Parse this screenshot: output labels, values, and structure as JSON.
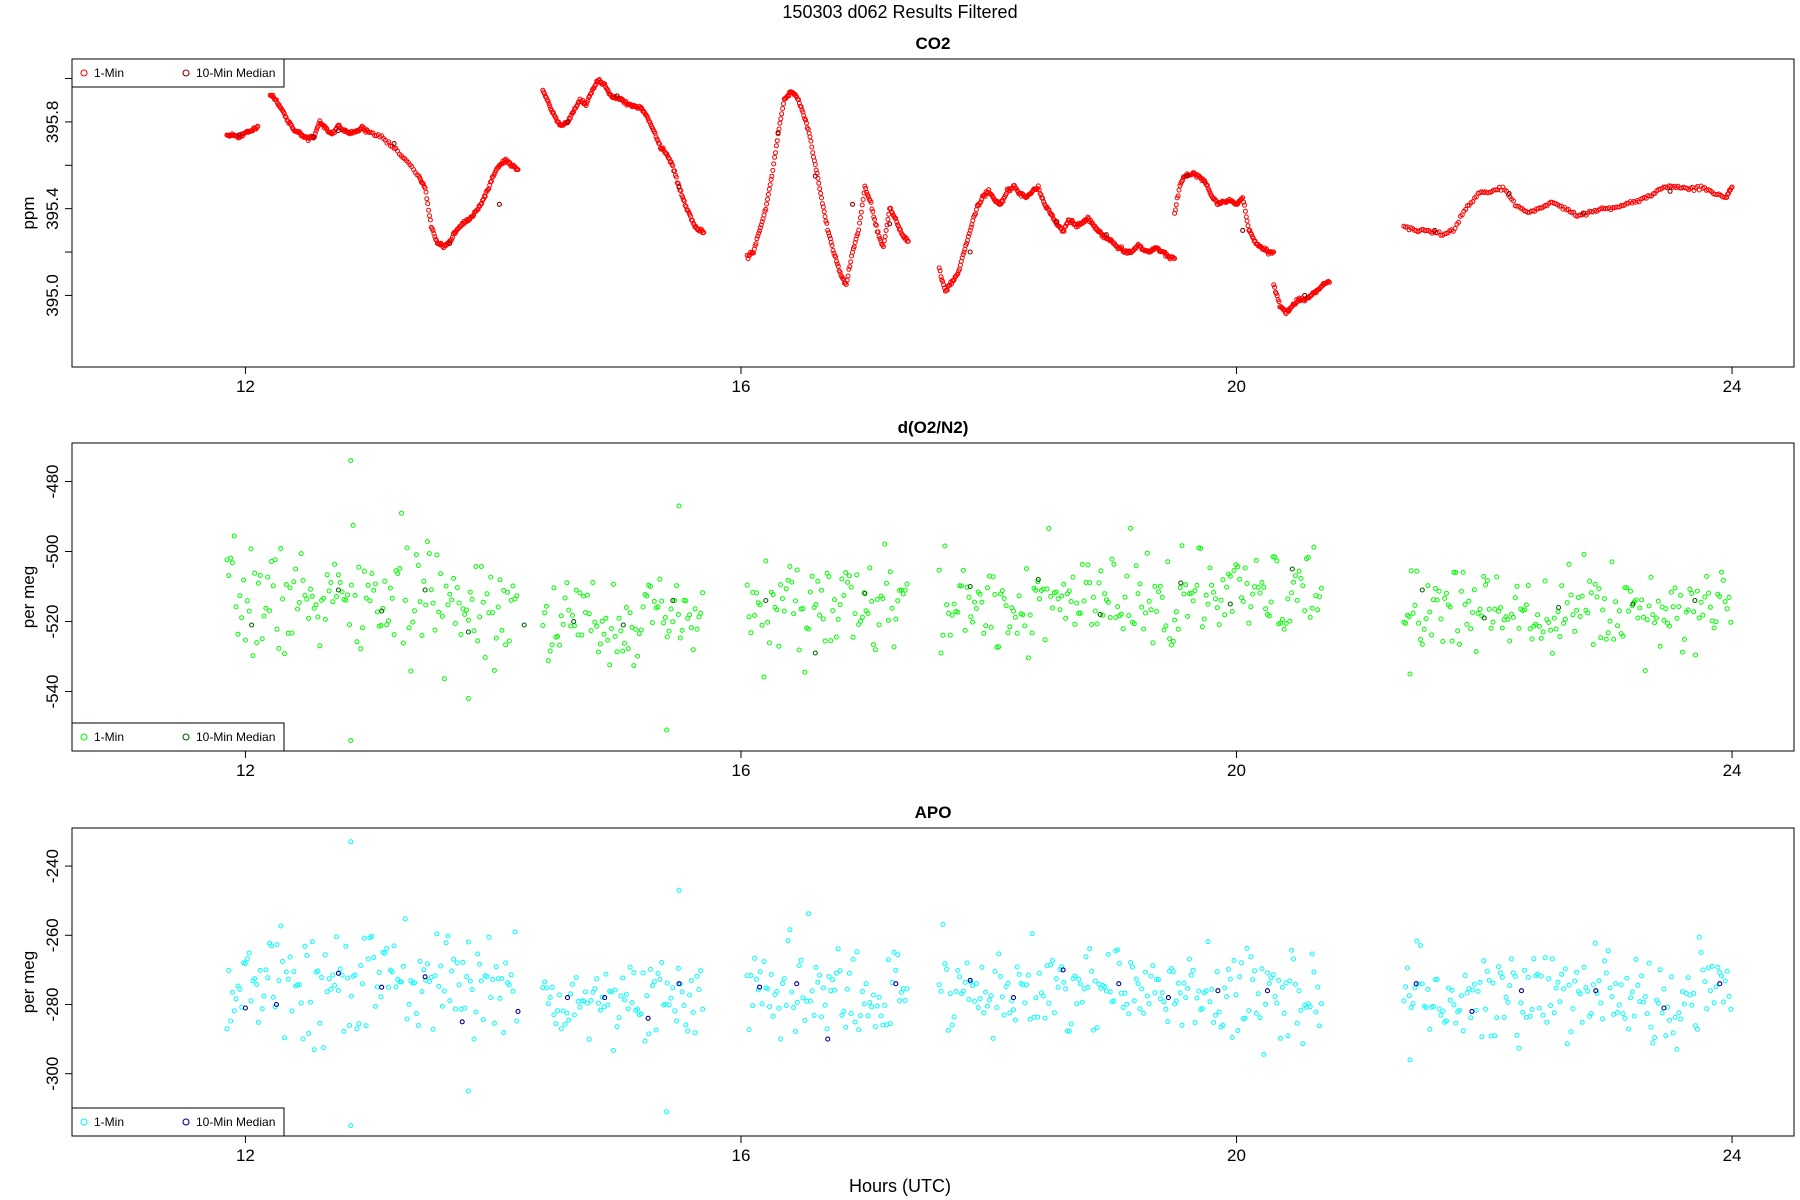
{
  "page": {
    "title": "150303   d062   Results Filtered",
    "xlabel": "Hours (UTC)"
  },
  "chart_data": [
    {
      "type": "scatter",
      "title": "CO2",
      "ylabel": "ppm",
      "xlim": [
        10.6,
        24.5
      ],
      "ylim": [
        394.67,
        396.09
      ],
      "xticks": [
        12,
        16,
        20,
        24
      ],
      "yticks": [
        395.0,
        395.2,
        395.4,
        395.6,
        395.8,
        396.0
      ],
      "yticklabels": [
        "395.0",
        "",
        "395.4",
        "",
        "395.8",
        ""
      ],
      "legend": {
        "position": "top-left",
        "entries": [
          "1-Min",
          "10-Min Median"
        ]
      },
      "colors": {
        "one_min": "#ff0000",
        "median": "#8b0000"
      },
      "series": [
        {
          "name": "1-Min",
          "gen": "smooth",
          "segments": [
            {
              "x": [
                11.85,
                11.9,
                11.95,
                12.0,
                12.05,
                12.1
              ],
              "y": [
                395.74,
                395.74,
                395.73,
                395.75,
                395.76,
                395.78
              ]
            },
            {
              "x": [
                12.2,
                12.25,
                12.3,
                12.35,
                12.4,
                12.45,
                12.5,
                12.55,
                12.6,
                12.65,
                12.7,
                12.75,
                12.8,
                12.85,
                12.9,
                12.95,
                13.0,
                13.1,
                13.2,
                13.3,
                13.4,
                13.45,
                13.5,
                13.55,
                13.6,
                13.65,
                13.7,
                13.75,
                13.8,
                13.85,
                13.9,
                13.95,
                14.0,
                14.05,
                14.1,
                14.15,
                14.2
              ],
              "y": [
                395.92,
                395.9,
                395.85,
                395.8,
                395.76,
                395.74,
                395.72,
                395.73,
                395.8,
                395.77,
                395.74,
                395.78,
                395.76,
                395.75,
                395.76,
                395.77,
                395.75,
                395.73,
                395.68,
                395.62,
                395.55,
                395.5,
                395.32,
                395.24,
                395.22,
                395.25,
                395.3,
                395.33,
                395.35,
                395.38,
                395.42,
                395.48,
                395.55,
                395.6,
                395.62,
                395.6,
                395.58
              ]
            },
            {
              "x": [
                14.4,
                14.45,
                14.5,
                14.55,
                14.6,
                14.65,
                14.7,
                14.75,
                14.8,
                14.85,
                14.9,
                14.95,
                15.0,
                15.05,
                15.1,
                15.15,
                15.2,
                15.25,
                15.3,
                15.35,
                15.4,
                15.45,
                15.5,
                15.55,
                15.6,
                15.65,
                15.7
              ],
              "y": [
                395.95,
                395.88,
                395.82,
                395.78,
                395.8,
                395.85,
                395.9,
                395.88,
                395.95,
                395.99,
                395.97,
                395.92,
                395.91,
                395.9,
                395.88,
                395.87,
                395.86,
                395.82,
                395.75,
                395.68,
                395.65,
                395.6,
                395.5,
                395.42,
                395.35,
                395.3,
                395.29
              ]
            },
            {
              "x": [
                16.05,
                16.1,
                16.15,
                16.2,
                16.25,
                16.3,
                16.35,
                16.4,
                16.45,
                16.5,
                16.55,
                16.6,
                16.65,
                16.7,
                16.75,
                16.8,
                16.85,
                16.9,
                16.95,
                17.0,
                17.05,
                17.1,
                17.15,
                17.2,
                17.25,
                17.3,
                17.35
              ],
              "y": [
                395.18,
                395.2,
                395.3,
                395.4,
                395.55,
                395.75,
                395.9,
                395.94,
                395.92,
                395.85,
                395.75,
                395.6,
                395.45,
                395.3,
                395.2,
                395.1,
                395.05,
                395.2,
                395.3,
                395.5,
                395.42,
                395.3,
                395.22,
                395.4,
                395.35,
                395.28,
                395.25
              ]
            },
            {
              "x": [
                17.6,
                17.65,
                17.7,
                17.75,
                17.8,
                17.85,
                17.9,
                17.95,
                18.0,
                18.05,
                18.1,
                18.15,
                18.2,
                18.25,
                18.3,
                18.35,
                18.4,
                18.45,
                18.5,
                18.55,
                18.6,
                18.65,
                18.7,
                18.75,
                18.8,
                18.85,
                18.9,
                18.95,
                19.0,
                19.05,
                19.1,
                19.15,
                19.2,
                19.25,
                19.3,
                19.35,
                19.4,
                19.45,
                19.5
              ],
              "y": [
                395.12,
                395.02,
                395.06,
                395.1,
                395.2,
                395.3,
                395.4,
                395.45,
                395.48,
                395.44,
                395.42,
                395.48,
                395.5,
                395.47,
                395.45,
                395.48,
                395.5,
                395.42,
                395.38,
                395.33,
                395.3,
                395.35,
                395.32,
                395.33,
                395.36,
                395.32,
                395.29,
                395.26,
                395.25,
                395.22,
                395.2,
                395.2,
                395.23,
                395.21,
                395.2,
                395.22,
                395.2,
                395.18,
                395.17
              ]
            },
            {
              "x": [
                19.5,
                19.55,
                19.6,
                19.65,
                19.7,
                19.75,
                19.8,
                19.85,
                19.9,
                19.95,
                20.0,
                20.05,
                20.1,
                20.15,
                20.2,
                20.25,
                20.3
              ],
              "y": [
                395.38,
                395.52,
                395.56,
                395.56,
                395.55,
                395.52,
                395.46,
                395.42,
                395.43,
                395.44,
                395.42,
                395.45,
                395.3,
                395.25,
                395.22,
                395.2,
                395.2
              ]
            },
            {
              "x": [
                20.3,
                20.35,
                20.4,
                20.45,
                20.5,
                20.55,
                20.6,
                20.65,
                20.7,
                20.75
              ],
              "y": [
                395.05,
                394.95,
                394.92,
                394.95,
                394.98,
                394.98,
                395.0,
                395.02,
                395.05,
                395.06
              ]
            },
            {
              "x": [
                21.35,
                21.45,
                21.55,
                21.65,
                21.75,
                21.85,
                21.95,
                22.05,
                22.15,
                22.25,
                22.35,
                22.45,
                22.55,
                22.65,
                22.75,
                22.85,
                22.95,
                23.05,
                23.15,
                23.25,
                23.35,
                23.45,
                23.55,
                23.65,
                23.75,
                23.85,
                23.95,
                24.0
              ],
              "y": [
                395.32,
                395.3,
                395.3,
                395.28,
                395.3,
                395.4,
                395.47,
                395.48,
                395.5,
                395.42,
                395.38,
                395.4,
                395.43,
                395.4,
                395.37,
                395.38,
                395.4,
                395.4,
                395.42,
                395.44,
                395.46,
                395.5,
                395.5,
                395.49,
                395.5,
                395.47,
                395.45,
                395.5
              ]
            }
          ]
        },
        {
          "name": "10-Min Median",
          "x": [
            11.95,
            12.55,
            12.75,
            13.2,
            13.65,
            14.05,
            14.6,
            15.0,
            15.5,
            16.3,
            16.6,
            16.9,
            17.2,
            17.85,
            18.55,
            18.95,
            19.6,
            20.05,
            20.55,
            21.6,
            22.2,
            22.8,
            23.5
          ],
          "y": [
            395.74,
            395.73,
            395.76,
            395.7,
            395.24,
            395.42,
            395.8,
            395.92,
            395.5,
            395.75,
            395.55,
            395.42,
            395.33,
            395.2,
            395.34,
            395.28,
            395.55,
            395.3,
            395.0,
            395.3,
            395.47,
            395.38,
            395.48
          ]
        }
      ]
    },
    {
      "type": "scatter",
      "title": "d(O2/N2)",
      "ylabel": "per meg",
      "xlim": [
        10.6,
        24.5
      ],
      "ylim": [
        -557,
        -469
      ],
      "xticks": [
        12,
        16,
        20,
        24
      ],
      "yticks": [
        -480,
        -500,
        -520,
        -540
      ],
      "legend": {
        "position": "bottom-left",
        "entries": [
          "1-Min",
          "10-Min Median"
        ]
      },
      "colors": {
        "one_min": "#00ff00",
        "median": "#006400"
      },
      "series": [
        {
          "name": "1-Min",
          "gen": "noise",
          "seed": 7,
          "segments": [
            {
              "x0": 11.85,
              "x1": 14.2,
              "mean": -514,
              "sd": 8
            },
            {
              "x0": 14.4,
              "x1": 15.7,
              "mean": -520,
              "sd": 6
            },
            {
              "x0": 16.05,
              "x1": 17.35,
              "mean": -516,
              "sd": 7
            },
            {
              "x0": 17.6,
              "x1": 19.5,
              "mean": -515,
              "sd": 7
            },
            {
              "x0": 19.5,
              "x1": 20.7,
              "mean": -513,
              "sd": 6
            },
            {
              "x0": 21.35,
              "x1": 24.0,
              "mean": -516,
              "sd": 6
            }
          ],
          "outliers": {
            "x": [
              12.85,
              12.85,
              15.5,
              15.4,
              13.8,
              21.4
            ],
            "y": [
              -474,
              -554,
              -487,
              -551,
              -542,
              -535
            ]
          }
        },
        {
          "name": "10-Min Median",
          "x": [
            12.05,
            12.75,
            13.1,
            13.45,
            13.8,
            14.25,
            14.65,
            15.05,
            15.45,
            16.2,
            16.6,
            17.0,
            17.85,
            18.4,
            18.9,
            19.55,
            19.95,
            20.45,
            21.5,
            22.0,
            22.6,
            23.2,
            23.7
          ],
          "y": [
            -521,
            -511,
            -517,
            -511,
            -523,
            -521,
            -520,
            -521,
            -514,
            -514,
            -529,
            -512,
            -510,
            -508,
            -518,
            -509,
            -515,
            -505,
            -511,
            -519,
            -516,
            -515,
            -514
          ]
        }
      ]
    },
    {
      "type": "scatter",
      "title": "APO",
      "ylabel": "per meg",
      "xlim": [
        10.6,
        24.5
      ],
      "ylim": [
        -318,
        -229
      ],
      "xticks": [
        12,
        16,
        20,
        24
      ],
      "yticks": [
        -240,
        -260,
        -280,
        -300
      ],
      "legend": {
        "position": "bottom-left",
        "entries": [
          "1-Min",
          "10-Min Median"
        ]
      },
      "colors": {
        "one_min": "#00ffff",
        "median": "#00008b"
      },
      "series": [
        {
          "name": "1-Min",
          "gen": "noise",
          "seed": 13,
          "segments": [
            {
              "x0": 11.85,
              "x1": 14.2,
              "mean": -274,
              "sd": 8
            },
            {
              "x0": 14.4,
              "x1": 15.7,
              "mean": -278,
              "sd": 6
            },
            {
              "x0": 16.05,
              "x1": 17.35,
              "mean": -277,
              "sd": 7
            },
            {
              "x0": 17.6,
              "x1": 19.5,
              "mean": -276,
              "sd": 7
            },
            {
              "x0": 19.5,
              "x1": 20.7,
              "mean": -277,
              "sd": 6
            },
            {
              "x0": 21.35,
              "x1": 24.0,
              "mean": -277,
              "sd": 6
            }
          ],
          "outliers": {
            "x": [
              12.85,
              12.85,
              15.5,
              15.4,
              13.8,
              21.4
            ],
            "y": [
              -233,
              -315,
              -247,
              -311,
              -305,
              -296
            ]
          }
        },
        {
          "name": "10-Min Median",
          "x": [
            12.0,
            12.25,
            12.75,
            13.1,
            13.45,
            13.75,
            14.2,
            14.6,
            14.9,
            15.25,
            15.5,
            16.15,
            16.45,
            16.7,
            17.25,
            17.85,
            18.2,
            18.6,
            19.05,
            19.45,
            19.85,
            20.25,
            21.45,
            21.9,
            22.3,
            22.9,
            23.45,
            23.9
          ],
          "y": [
            -281,
            -280,
            -271,
            -275,
            -272,
            -285,
            -282,
            -278,
            -278,
            -284,
            -274,
            -275,
            -274,
            -290,
            -274,
            -273,
            -278,
            -270,
            -274,
            -278,
            -276,
            -276,
            -274,
            -282,
            -276,
            -276,
            -281,
            -274
          ]
        }
      ]
    }
  ]
}
